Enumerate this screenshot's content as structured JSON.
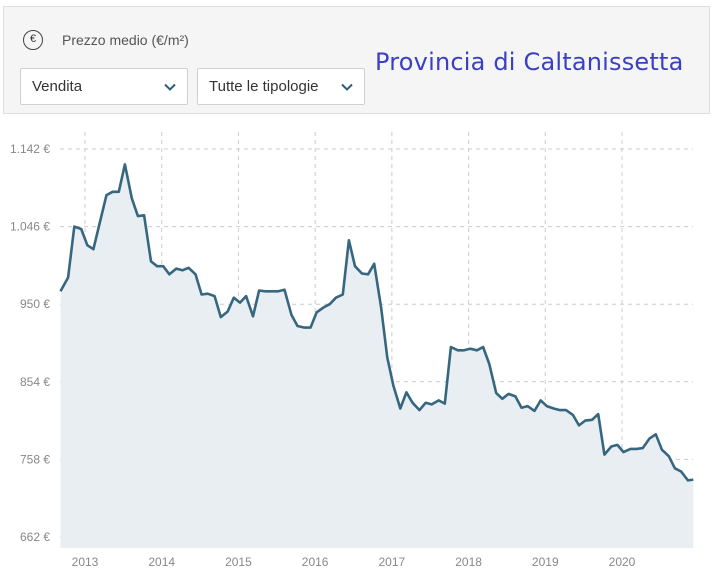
{
  "header": {
    "currency_symbol": "€",
    "metric_label": "Prezzo medio (€/m²)",
    "contract_select": {
      "value": "Vendita"
    },
    "type_select": {
      "value": "Tutte le tipologie"
    },
    "title": "Provincia di Caltanissetta"
  },
  "colors": {
    "line": "#36677f",
    "area": "#e9eef3",
    "grid": "#cccccc",
    "title": "#3a3fc4"
  },
  "chart_data": {
    "type": "area",
    "title": "",
    "xlabel": "",
    "ylabel": "",
    "ylim": [
      662,
      1142
    ],
    "yticks": [
      662,
      758,
      854,
      950,
      1046,
      1142
    ],
    "ytick_labels": [
      "662 €",
      "758 €",
      "854 €",
      "950 €",
      "1.046 €",
      "1.142 €"
    ],
    "xticks": [
      2013,
      2014,
      2015,
      2016,
      2017,
      2018,
      2019,
      2020
    ],
    "xlim": [
      2012.68,
      2020.93
    ],
    "grid": true,
    "series": [
      {
        "values": [
          [
            2012.68,
            966
          ],
          [
            2012.78,
            983
          ],
          [
            2012.86,
            1046
          ],
          [
            2012.95,
            1043
          ],
          [
            2013.03,
            1023
          ],
          [
            2013.11,
            1018
          ],
          [
            2013.19,
            1050
          ],
          [
            2013.28,
            1085
          ],
          [
            2013.36,
            1089
          ],
          [
            2013.44,
            1089
          ],
          [
            2013.52,
            1123
          ],
          [
            2013.61,
            1081
          ],
          [
            2013.69,
            1059
          ],
          [
            2013.77,
            1060
          ],
          [
            2013.86,
            1003
          ],
          [
            2013.94,
            997
          ],
          [
            2014.02,
            997
          ],
          [
            2014.1,
            987
          ],
          [
            2014.19,
            994
          ],
          [
            2014.27,
            992
          ],
          [
            2014.35,
            995
          ],
          [
            2014.44,
            987
          ],
          [
            2014.52,
            962
          ],
          [
            2014.6,
            963
          ],
          [
            2014.69,
            960
          ],
          [
            2014.77,
            934
          ],
          [
            2014.86,
            941
          ],
          [
            2014.94,
            958
          ],
          [
            2015.02,
            952
          ],
          [
            2015.1,
            960
          ],
          [
            2015.19,
            935
          ],
          [
            2015.27,
            967
          ],
          [
            2015.35,
            966
          ],
          [
            2015.44,
            966
          ],
          [
            2015.52,
            966
          ],
          [
            2015.6,
            968
          ],
          [
            2015.69,
            937
          ],
          [
            2015.77,
            923
          ],
          [
            2015.86,
            921
          ],
          [
            2015.94,
            921
          ],
          [
            2016.02,
            940
          ],
          [
            2016.11,
            946
          ],
          [
            2016.19,
            950
          ],
          [
            2016.27,
            958
          ],
          [
            2016.36,
            962
          ],
          [
            2016.44,
            1029
          ],
          [
            2016.52,
            997
          ],
          [
            2016.61,
            988
          ],
          [
            2016.69,
            987
          ],
          [
            2016.77,
            1000
          ],
          [
            2016.86,
            946
          ],
          [
            2016.94,
            884
          ],
          [
            2017.02,
            849
          ],
          [
            2017.11,
            821
          ],
          [
            2017.19,
            841
          ],
          [
            2017.27,
            828
          ],
          [
            2017.36,
            819
          ],
          [
            2017.44,
            828
          ],
          [
            2017.52,
            826
          ],
          [
            2017.61,
            831
          ],
          [
            2017.69,
            827
          ],
          [
            2017.77,
            897
          ],
          [
            2017.86,
            893
          ],
          [
            2017.94,
            893
          ],
          [
            2018.02,
            895
          ],
          [
            2018.11,
            893
          ],
          [
            2018.19,
            897
          ],
          [
            2018.27,
            876
          ],
          [
            2018.36,
            840
          ],
          [
            2018.44,
            833
          ],
          [
            2018.52,
            839
          ],
          [
            2018.61,
            836
          ],
          [
            2018.69,
            822
          ],
          [
            2018.77,
            824
          ],
          [
            2018.86,
            818
          ],
          [
            2018.94,
            831
          ],
          [
            2019.02,
            824
          ],
          [
            2019.11,
            821
          ],
          [
            2019.19,
            819
          ],
          [
            2019.27,
            819
          ],
          [
            2019.36,
            813
          ],
          [
            2019.44,
            800
          ],
          [
            2019.52,
            806
          ],
          [
            2019.61,
            807
          ],
          [
            2019.69,
            814
          ],
          [
            2019.77,
            764
          ],
          [
            2019.86,
            774
          ],
          [
            2019.94,
            776
          ],
          [
            2020.02,
            767
          ],
          [
            2020.11,
            771
          ],
          [
            2020.19,
            771
          ],
          [
            2020.27,
            772
          ],
          [
            2020.36,
            784
          ],
          [
            2020.44,
            789
          ],
          [
            2020.52,
            770
          ],
          [
            2020.61,
            762
          ],
          [
            2020.69,
            747
          ],
          [
            2020.77,
            743
          ],
          [
            2020.86,
            732
          ],
          [
            2020.93,
            733
          ]
        ]
      }
    ]
  }
}
